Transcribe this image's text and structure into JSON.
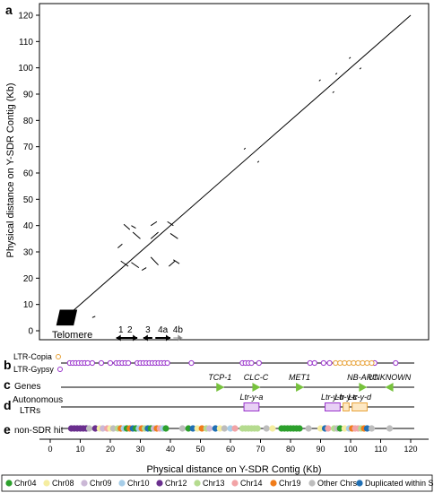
{
  "chart_data": [
    {
      "panel": "a",
      "type": "scatter",
      "title": "",
      "xlabel": "",
      "ylabel": "Physical distance on Y-SDR Contig (Kb)",
      "xlim": [
        0,
        122
      ],
      "ylim": [
        0,
        122
      ],
      "y_ticks": [
        0,
        10,
        20,
        30,
        40,
        50,
        60,
        70,
        80,
        90,
        100,
        110,
        120
      ],
      "diagonal": {
        "x": [
          3,
          120
        ],
        "y": [
          3,
          120
        ]
      },
      "telomere_label": "Telomere",
      "telomere_block": {
        "x": [
          2,
          9
        ],
        "y": [
          2,
          8
        ]
      },
      "dot_segments": [
        {
          "x": [
            24.5,
            26.5
          ],
          "y": [
            40.5,
            38.5
          ]
        },
        {
          "x": [
            27.0,
            28.5
          ],
          "y": [
            40.0,
            39.0
          ]
        },
        {
          "x": [
            33.5,
            35.5
          ],
          "y": [
            40.0,
            41.5
          ]
        },
        {
          "x": [
            39.0,
            41.0
          ],
          "y": [
            41.5,
            40.0
          ]
        },
        {
          "x": [
            22.5,
            24.0
          ],
          "y": [
            31.5,
            33.0
          ]
        },
        {
          "x": [
            27.5,
            30.0
          ],
          "y": [
            37.5,
            35.0
          ]
        },
        {
          "x": [
            33.5,
            36.0
          ],
          "y": [
            35.0,
            37.5
          ]
        },
        {
          "x": [
            40.0,
            42.5
          ],
          "y": [
            37.0,
            35.0
          ]
        },
        {
          "x": [
            23.5,
            26.0
          ],
          "y": [
            26.5,
            24.5
          ]
        },
        {
          "x": [
            27.0,
            29.5
          ],
          "y": [
            26.0,
            24.0
          ]
        },
        {
          "x": [
            33.5,
            36.0
          ],
          "y": [
            28.0,
            25.0
          ]
        },
        {
          "x": [
            39.5,
            41.5
          ],
          "y": [
            24.5,
            26.5
          ]
        },
        {
          "x": [
            41.0,
            43.0
          ],
          "y": [
            27.0,
            25.5
          ]
        },
        {
          "x": [
            30.5,
            32.0
          ],
          "y": [
            23.0,
            24.0
          ]
        },
        {
          "x": [
            14.0,
            15.0
          ],
          "y": [
            5.0,
            5.5
          ]
        },
        {
          "x": [
            64.5,
            65.0
          ],
          "y": [
            69.0,
            69.5
          ]
        },
        {
          "x": [
            69.0,
            69.5
          ],
          "y": [
            64.0,
            64.5
          ]
        },
        {
          "x": [
            89.5,
            90.0
          ],
          "y": [
            95.0,
            95.5
          ]
        },
        {
          "x": [
            94.0,
            94.5
          ],
          "y": [
            90.5,
            91.0
          ]
        },
        {
          "x": [
            95.0,
            95.5
          ],
          "y": [
            97.5,
            98.0
          ]
        },
        {
          "x": [
            99.5,
            100.0
          ],
          "y": [
            103.5,
            104.0
          ]
        },
        {
          "x": [
            103.0,
            103.5
          ],
          "y": [
            99.5,
            100.0
          ]
        }
      ],
      "dup_arrows": [
        {
          "label": "1",
          "from": 25,
          "to": 22
        },
        {
          "label": "2",
          "from": 24,
          "to": 29
        },
        {
          "label": "3",
          "from": 34,
          "to": 31
        },
        {
          "label": "4a",
          "from": 35,
          "to": 40
        },
        {
          "label": "4b",
          "from": 41,
          "to": 44
        }
      ]
    },
    {
      "panel": "b",
      "type": "scatter",
      "labels": [
        "LTR-Copia",
        "LTR-Gypsy"
      ],
      "copia_color": "#e8a33a",
      "gypsy_color": "#9933cc",
      "copia_x": [
        95,
        96.5,
        98,
        99.5,
        101,
        102.5,
        104,
        105.5,
        107
      ],
      "gypsy_x": [
        6.5,
        7.5,
        8.5,
        9.5,
        10.5,
        11.5,
        12.5,
        14,
        17,
        20,
        22,
        23,
        24,
        25,
        26,
        29,
        30,
        31,
        32,
        33,
        34,
        35,
        36,
        37,
        38,
        39,
        47,
        64,
        65,
        66,
        67,
        69.5,
        86.5,
        88,
        91,
        93,
        108,
        115
      ]
    },
    {
      "panel": "c",
      "type": "scatter",
      "label": "Genes",
      "arrow_color": "#77c23c",
      "genes": [
        {
          "name": "TCP-1",
          "x": 56.5,
          "dir": "right"
        },
        {
          "name": "CLC-C",
          "x": 68.5,
          "dir": "right"
        },
        {
          "name": "MET1",
          "x": 83,
          "dir": "right"
        },
        {
          "name": "NB-ARC",
          "x": 104,
          "dir": "right"
        },
        {
          "name": "UNKNOWN",
          "x": 113,
          "dir": "left"
        }
      ]
    },
    {
      "panel": "d",
      "type": "scatter",
      "label": "Autonomous LTRs",
      "ltrs": [
        {
          "name": "Ltr-y-a",
          "start": 64.5,
          "end": 69.5,
          "color": "#9933cc"
        },
        {
          "name": "Ltr-y-b",
          "start": 91.5,
          "end": 96.5,
          "color": "#9933cc"
        },
        {
          "name": "Ltr-y-c",
          "start": 97.5,
          "end": 99.5,
          "color": "#e8a33a"
        },
        {
          "name": "Ltr-y-d",
          "start": 100.5,
          "end": 105.5,
          "color": "#e8a33a"
        }
      ]
    },
    {
      "panel": "e",
      "type": "scatter",
      "label": "non-SDR hit",
      "xlabel": "Physical distance on Y-SDR Contig (Kb)",
      "xlim": [
        0,
        122
      ],
      "x_ticks": [
        0,
        10,
        20,
        30,
        40,
        50,
        60,
        70,
        80,
        90,
        100,
        110,
        120
      ],
      "hits": [
        {
          "x": 7,
          "cat": 4
        },
        {
          "x": 8,
          "cat": 4
        },
        {
          "x": 9,
          "cat": 4
        },
        {
          "x": 10,
          "cat": 4
        },
        {
          "x": 11,
          "cat": 4
        },
        {
          "x": 12,
          "cat": 4
        },
        {
          "x": 13,
          "cat": 8
        },
        {
          "x": 15,
          "cat": 4
        },
        {
          "x": 16.5,
          "cat": 1
        },
        {
          "x": 17.5,
          "cat": 2
        },
        {
          "x": 19,
          "cat": 6
        },
        {
          "x": 20,
          "cat": 1
        },
        {
          "x": 21,
          "cat": 8
        },
        {
          "x": 22.5,
          "cat": 5
        },
        {
          "x": 23.5,
          "cat": 7
        },
        {
          "x": 24.5,
          "cat": 3
        },
        {
          "x": 25.5,
          "cat": 0
        },
        {
          "x": 26.5,
          "cat": 7
        },
        {
          "x": 27.5,
          "cat": 9
        },
        {
          "x": 28.5,
          "cat": 0
        },
        {
          "x": 29.5,
          "cat": 3
        },
        {
          "x": 30.5,
          "cat": 7
        },
        {
          "x": 31.5,
          "cat": 5
        },
        {
          "x": 32.5,
          "cat": 9
        },
        {
          "x": 33.5,
          "cat": 0
        },
        {
          "x": 34.5,
          "cat": 2
        },
        {
          "x": 35.5,
          "cat": 7
        },
        {
          "x": 36.5,
          "cat": 6
        },
        {
          "x": 37.5,
          "cat": 3
        },
        {
          "x": 38.5,
          "cat": 0
        },
        {
          "x": 44,
          "cat": 8
        },
        {
          "x": 46,
          "cat": 0
        },
        {
          "x": 47.5,
          "cat": 9
        },
        {
          "x": 49,
          "cat": 1
        },
        {
          "x": 50.5,
          "cat": 7
        },
        {
          "x": 52,
          "cat": 5
        },
        {
          "x": 53,
          "cat": 2
        },
        {
          "x": 55,
          "cat": 9
        },
        {
          "x": 56.5,
          "cat": 1
        },
        {
          "x": 58,
          "cat": 8
        },
        {
          "x": 60,
          "cat": 3
        },
        {
          "x": 61.5,
          "cat": 6
        },
        {
          "x": 64,
          "cat": 5
        },
        {
          "x": 65,
          "cat": 5
        },
        {
          "x": 66,
          "cat": 5
        },
        {
          "x": 67,
          "cat": 5
        },
        {
          "x": 68,
          "cat": 5
        },
        {
          "x": 69,
          "cat": 5
        },
        {
          "x": 72,
          "cat": 8
        },
        {
          "x": 74,
          "cat": 1
        },
        {
          "x": 77,
          "cat": 0
        },
        {
          "x": 78,
          "cat": 0
        },
        {
          "x": 79,
          "cat": 0
        },
        {
          "x": 80,
          "cat": 0
        },
        {
          "x": 81,
          "cat": 0
        },
        {
          "x": 82,
          "cat": 0
        },
        {
          "x": 83,
          "cat": 0
        },
        {
          "x": 86,
          "cat": 8
        },
        {
          "x": 90,
          "cat": 1
        },
        {
          "x": 91.5,
          "cat": 9
        },
        {
          "x": 92.5,
          "cat": 6
        },
        {
          "x": 94.5,
          "cat": 5
        },
        {
          "x": 95.5,
          "cat": 8
        },
        {
          "x": 96.5,
          "cat": 0
        },
        {
          "x": 98,
          "cat": 1
        },
        {
          "x": 99.5,
          "cat": 3
        },
        {
          "x": 100.5,
          "cat": 7
        },
        {
          "x": 101.5,
          "cat": 6
        },
        {
          "x": 102.5,
          "cat": 6
        },
        {
          "x": 103.5,
          "cat": 5
        },
        {
          "x": 104.5,
          "cat": 7
        },
        {
          "x": 105.5,
          "cat": 9
        },
        {
          "x": 107,
          "cat": 8
        },
        {
          "x": 113,
          "cat": 8
        }
      ]
    }
  ],
  "panel_letters": [
    "a",
    "b",
    "c",
    "d",
    "e"
  ],
  "legend": [
    {
      "label": "Chr04",
      "color": "#2ca02c"
    },
    {
      "label": "Chr08",
      "color": "#f5eda0"
    },
    {
      "label": "Chr09",
      "color": "#cbb8d6"
    },
    {
      "label": "Chr10",
      "color": "#a6cde8"
    },
    {
      "label": "Chr12",
      "color": "#6a2f8e"
    },
    {
      "label": "Chr13",
      "color": "#b5db8f"
    },
    {
      "label": "Chr14",
      "color": "#f2a3a6"
    },
    {
      "label": "Chr19",
      "color": "#f07c1a"
    },
    {
      "label": "Other Chrs",
      "color": "#bdbdbd"
    },
    {
      "label": "Duplicated within SDR",
      "color": "#1f6fb4"
    }
  ]
}
